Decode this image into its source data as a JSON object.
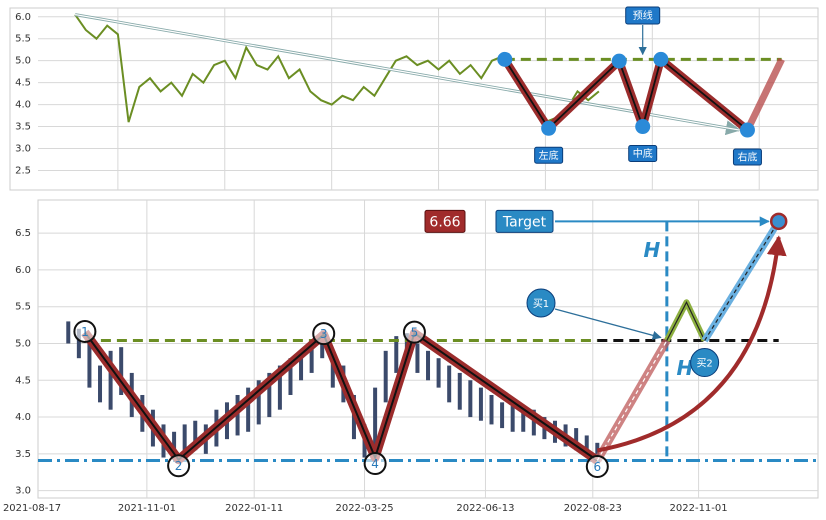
{
  "chart_data": [
    {
      "type": "line",
      "series": [
        {
          "color": "#6b8e23",
          "x": [
            6,
            7,
            8,
            9,
            10,
            11,
            12,
            13,
            14,
            15,
            16,
            17,
            18,
            19,
            20,
            21,
            22,
            23,
            24,
            25,
            26,
            27,
            28,
            29,
            30,
            31,
            32,
            33,
            34,
            35,
            36,
            37,
            38,
            39,
            40,
            41,
            42,
            43,
            44,
            45,
            46,
            47,
            48,
            49,
            50,
            51,
            52,
            53,
            54,
            55
          ],
          "values": [
            6.05,
            5.7,
            5.5,
            5.8,
            5.6,
            3.6,
            4.4,
            4.6,
            4.3,
            4.5,
            4.2,
            4.7,
            4.5,
            4.9,
            5.0,
            4.6,
            5.3,
            4.9,
            4.8,
            5.1,
            4.6,
            4.8,
            4.3,
            4.1,
            4.0,
            4.2,
            4.1,
            4.4,
            4.2,
            4.6,
            5.0,
            5.1,
            4.9,
            5.0,
            4.8,
            5.0,
            4.7,
            4.9,
            4.6,
            5.0,
            5.1,
            4.7,
            4.3,
            4.0,
            3.6,
            3.7,
            3.9,
            4.3,
            4.1,
            4.3
          ]
        }
      ],
      "xlim": [
        0,
        75.5
      ],
      "xticks": [
        10,
        20,
        30,
        40,
        50,
        60,
        70
      ],
      "show_xtick_labels": false,
      "ylim": [
        2.1,
        6.2
      ],
      "yticks": [
        2.5,
        {
          "value": 3,
          "label": "3.0"
        },
        3.5,
        {
          "value": 4,
          "label": "4.0"
        },
        4.5,
        {
          "value": 5,
          "label": "5.0"
        },
        5.5,
        {
          "value": 6,
          "label": "6.0"
        }
      ],
      "grid": true,
      "pattern": {
        "x": [
          46.2,
          50.3,
          56.9,
          59.1,
          60.8,
          68.9,
          72.1
        ],
        "values": [
          5.03,
          3.46,
          4.99,
          3.5,
          5.03,
          3.42,
          5.03
        ],
        "labels": [
          null,
          "左底",
          null,
          "中底",
          null,
          "右底",
          null
        ]
      },
      "neckline": 5.03,
      "neckline_label": "预线"
    },
    {
      "type": "candlestick",
      "color": "#3b4a6b",
      "x": [
        "2021-09-10",
        "2021-09-17",
        "2021-09-24",
        "2021-10-01",
        "2021-10-08",
        "2021-10-15",
        "2021-10-22",
        "2021-10-29",
        "2021-11-05",
        "2021-11-12",
        "2021-11-19",
        "2021-11-26",
        "2021-12-03",
        "2021-12-10",
        "2021-12-17",
        "2021-12-24",
        "2021-12-31",
        "2022-01-07",
        "2022-01-14",
        "2022-01-21",
        "2022-01-28",
        "2022-02-04",
        "2022-02-11",
        "2022-02-18",
        "2022-02-25",
        "2022-03-04",
        "2022-03-11",
        "2022-03-18",
        "2022-03-25",
        "2022-04-01",
        "2022-04-08",
        "2022-04-15",
        "2022-04-22",
        "2022-04-29",
        "2022-05-06",
        "2022-05-13",
        "2022-05-20",
        "2022-05-27",
        "2022-06-03",
        "2022-06-10",
        "2022-06-17",
        "2022-06-24",
        "2022-07-01",
        "2022-07-08",
        "2022-07-15",
        "2022-07-22",
        "2022-07-29",
        "2022-08-05",
        "2022-08-12",
        "2022-08-19",
        "2022-08-26"
      ],
      "low": [
        5.0,
        4.8,
        4.4,
        4.2,
        4.1,
        4.3,
        4.0,
        3.8,
        3.6,
        3.45,
        3.42,
        3.5,
        3.55,
        3.5,
        3.6,
        3.7,
        3.75,
        3.8,
        3.9,
        4.0,
        4.1,
        4.3,
        4.5,
        4.6,
        4.8,
        4.4,
        4.2,
        3.7,
        3.45,
        3.5,
        4.2,
        4.6,
        4.7,
        4.6,
        4.5,
        4.4,
        4.2,
        4.1,
        4.0,
        3.95,
        3.9,
        3.85,
        3.8,
        3.8,
        3.75,
        3.7,
        3.65,
        3.6,
        3.55,
        3.5,
        3.41
      ],
      "high": [
        5.3,
        5.2,
        5.0,
        4.7,
        4.9,
        4.95,
        4.6,
        4.3,
        4.1,
        3.9,
        3.8,
        3.9,
        3.95,
        3.9,
        4.1,
        4.2,
        4.3,
        4.4,
        4.5,
        4.6,
        4.7,
        4.8,
        4.9,
        5.0,
        5.1,
        4.9,
        4.7,
        4.3,
        3.9,
        4.4,
        4.9,
        5.1,
        5.14,
        5.0,
        4.9,
        4.8,
        4.7,
        4.6,
        4.5,
        4.4,
        4.3,
        4.2,
        4.15,
        4.1,
        4.1,
        4.0,
        3.95,
        3.9,
        3.85,
        3.75,
        3.65
      ],
      "xlim": [
        "2021-08-17",
        "2023-01-19"
      ],
      "xticks": [
        "2021-08-17",
        "2021-11-01",
        "2022-01-11",
        "2022-03-25",
        "2022-06-13",
        "2022-08-23",
        "2022-11-01"
      ],
      "ylim": [
        2.9,
        6.95
      ],
      "yticks": [
        {
          "value": 3,
          "label": "3.0"
        },
        3.5,
        {
          "value": 4,
          "label": "4.0"
        },
        4.5,
        {
          "value": 5,
          "label": "5.0"
        },
        5.5,
        {
          "value": 6,
          "label": "6.0"
        },
        6.5
      ],
      "grid": true,
      "pattern": {
        "x": [
          "2021-09-21",
          "2021-11-22",
          "2022-02-26",
          "2022-04-01",
          "2022-04-27",
          "2022-08-26"
        ],
        "values": [
          5.15,
          3.42,
          5.12,
          3.45,
          5.14,
          3.41
        ],
        "labels": [
          "1",
          "2",
          "3",
          "4",
          "5",
          "6"
        ]
      },
      "neckline": 5.04,
      "support": 3.41,
      "projection": {
        "x": [
          "2022-10-11",
          "2022-10-24",
          "2022-11-05"
        ],
        "values": [
          5.04,
          5.56,
          5.04
        ],
        "labels": [
          "买1",
          null,
          "买2"
        ]
      },
      "target": {
        "label": "Target",
        "x": "2022-12-24",
        "value": 6.66
      },
      "height_label": "H"
    }
  ]
}
